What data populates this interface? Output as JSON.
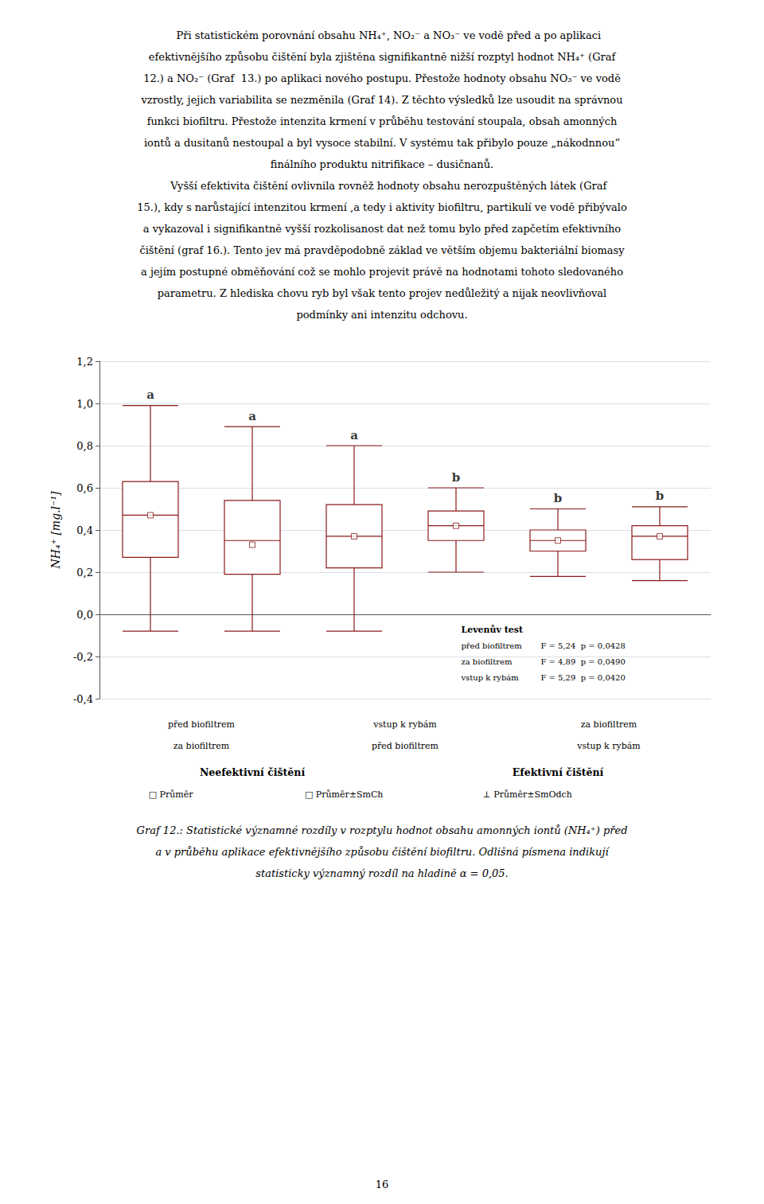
{
  "chart_data": {
    "type": "boxplot",
    "text_above": [
      "    Při statistickém porovnání obsahu NH₄⁺, NO₂⁻ a NO₃⁻ ve vodě před a po aplikaci",
      "efektivnějšího způsobu čištění byla zjištěna signifikantně nižší rozptyl hodnot NH₄⁺ (Graf",
      "12.) a NO₂⁻ (Graf  13.) po aplikaci nového postupu. Přestože hodnoty obsahu NO₃⁻ ve vodě",
      "vzrostly, jejich variabilita se nezměnila (Graf 14). Z těchto výsledků lze usoudit na správnou",
      "funkci biofiltru. Přestože intenzita krmení v průběhu testování stoupala, obsah amonných",
      "iontů a dusitanů nestoupal a byl vysoce stabilní. V systému tak přibylo pouze „nákodnnou“",
      "finálního produktu nitrifikace – dusičnanů.",
      "    Vyšší efektivita čištění ovlivnila rovněž hodnoty obsahu nerozpuštěných látek (Graf",
      "15.), kdy s narůstající intenzitou krmení ,a tedy i aktivity biofiltru, partikulí ve vodě přibývalo",
      "a vykazoval i signifikantně vyšší rozkolisanost dat než tomu bylo před zapčetím efektivního",
      "čištění (graf 16.). Tento jev má pravděpodobně základ ve větším objemu bakteriální biomasy",
      "a jejím postupné obměňování což se mohlo projevit právě na hodnotami tohoto sledovaného",
      "parametru. Z hlediska chovu ryb byl však tento projev nedůležitý a nijak neovlivňoval",
      "podmínky ani intenzitu odchovu."
    ],
    "y_label": "NH₄⁺ [mg.l⁻¹]",
    "categories": [
      null,
      null,
      null,
      null,
      null,
      null
    ],
    "series": [
      {
        "color": "#8B1A1A",
        "values": [
          [
            -0.08,
            0.27,
            0.47,
            0.63,
            0.99
          ],
          [
            -0.08,
            0.19,
            0.35,
            0.54,
            0.89
          ],
          [
            -0.08,
            0.22,
            0.37,
            0.52,
            0.8
          ],
          [
            0.2,
            0.35,
            0.42,
            0.49,
            0.6
          ],
          [
            0.18,
            0.3,
            0.35,
            0.4,
            0.5
          ],
          [
            0.16,
            0.26,
            0.37,
            0.42,
            0.51
          ]
        ],
        "means": [
          0.47,
          0.33,
          0.37,
          0.42,
          0.35,
          0.37
        ],
        "letters": [
          "a",
          "a",
          "a",
          "b",
          "b",
          "b"
        ]
      }
    ],
    "ylim": [
      -0.4,
      1.2
    ],
    "yticks": [
      {
        "value": -0.4,
        "label": "-0,4"
      },
      {
        "value": -0.2,
        "label": "-0,2"
      },
      {
        "value": 0.0,
        "label": "0,0"
      },
      {
        "value": 0.2,
        "label": "0,2"
      },
      {
        "value": 0.4,
        "label": "0,4"
      },
      {
        "value": 0.6,
        "label": "0,6"
      },
      {
        "value": 0.8,
        "label": "0,8"
      },
      {
        "value": 1.0,
        "label": "1,0"
      },
      {
        "value": 1.2,
        "label": "1,2"
      }
    ],
    "grid": true,
    "group_labels": [
      [
        "před biofiltrem",
        "za biofiltrem"
      ],
      [
        "vstup k rybám",
        "před biofiltrem"
      ],
      [
        "za biofiltrem",
        "vstup k rybám"
      ]
    ],
    "group_headers": [
      "Neefektivní čištění",
      "Efektivní čištění"
    ],
    "key_texts": [
      "□ Průměr",
      "□ Průměr±SmCh",
      "⊥ Průměr±SmOdch"
    ],
    "levene": {
      "title": "Levenův test",
      "rows": [
        [
          "před biofiltrem",
          "F = 5,24",
          "p = 0,0428"
        ],
        [
          "za biofiltrem",
          "F = 4,89",
          "p = 0,0490"
        ],
        [
          "vstup k rybám",
          "F = 5,29",
          "p = 0,0420"
        ]
      ]
    },
    "caption": [
      "Graf 12.: Statistické významné rozdíly v rozptylu hodnot obsahu amonných iontů (NH₄⁺) před",
      "a v průběhu aplikace efektivnějšího způsobu čištění biofiltru. Odlišná písmena indikují",
      "statisticky významný rozdíl na hladině α = 0,05."
    ],
    "page_number": "16"
  }
}
